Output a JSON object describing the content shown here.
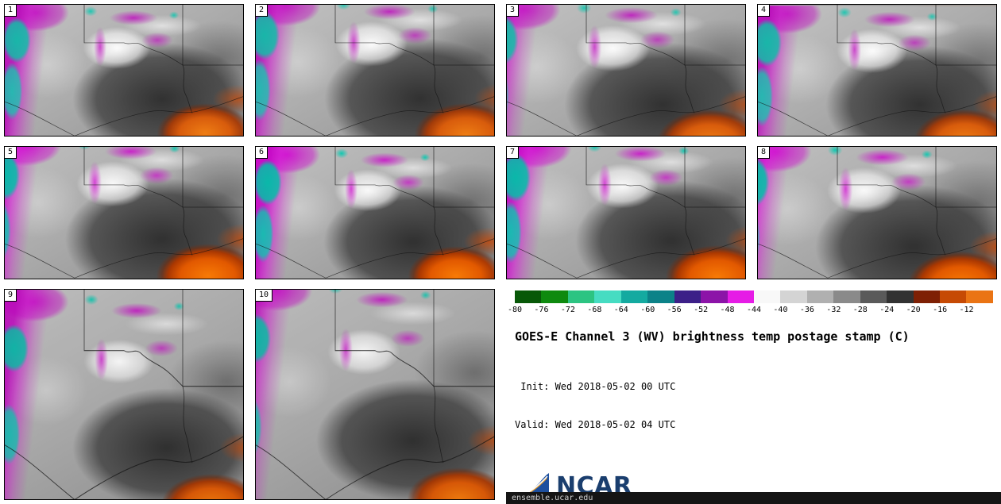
{
  "panels": [
    {
      "label": "1"
    },
    {
      "label": "2"
    },
    {
      "label": "3"
    },
    {
      "label": "4"
    },
    {
      "label": "5"
    },
    {
      "label": "6"
    },
    {
      "label": "7"
    },
    {
      "label": "8"
    },
    {
      "label": "9"
    },
    {
      "label": "10"
    }
  ],
  "colorbar": {
    "ticks": [
      "-80",
      "-76",
      "-72",
      "-68",
      "-64",
      "-60",
      "-56",
      "-52",
      "-48",
      "-44",
      "-40",
      "-36",
      "-32",
      "-28",
      "-24",
      "-20",
      "-16",
      "-12"
    ],
    "segments": [
      "#085808",
      "#0f8a0f",
      "#2cc482",
      "#46dcc2",
      "#14aaa0",
      "#0c8288",
      "#3c2088",
      "#8c14a8",
      "#e61ce6",
      "#f8f8f8",
      "#d4d4d4",
      "#b0b0b0",
      "#8a8a8a",
      "#5a5a5a",
      "#323232",
      "#7e2004",
      "#c64a04",
      "#ea7414"
    ]
  },
  "legend": {
    "title": "GOES-E Channel 3 (WV) brightness temp postage stamp (C)",
    "init_line": " Init: Wed 2018-05-02 00 UTC",
    "valid_line": "Valid: Wed 2018-05-02 04 UTC",
    "logo_text": "NCAR",
    "footer": "ensemble.ucar.edu",
    "logo_color": "#1a3e6e"
  }
}
